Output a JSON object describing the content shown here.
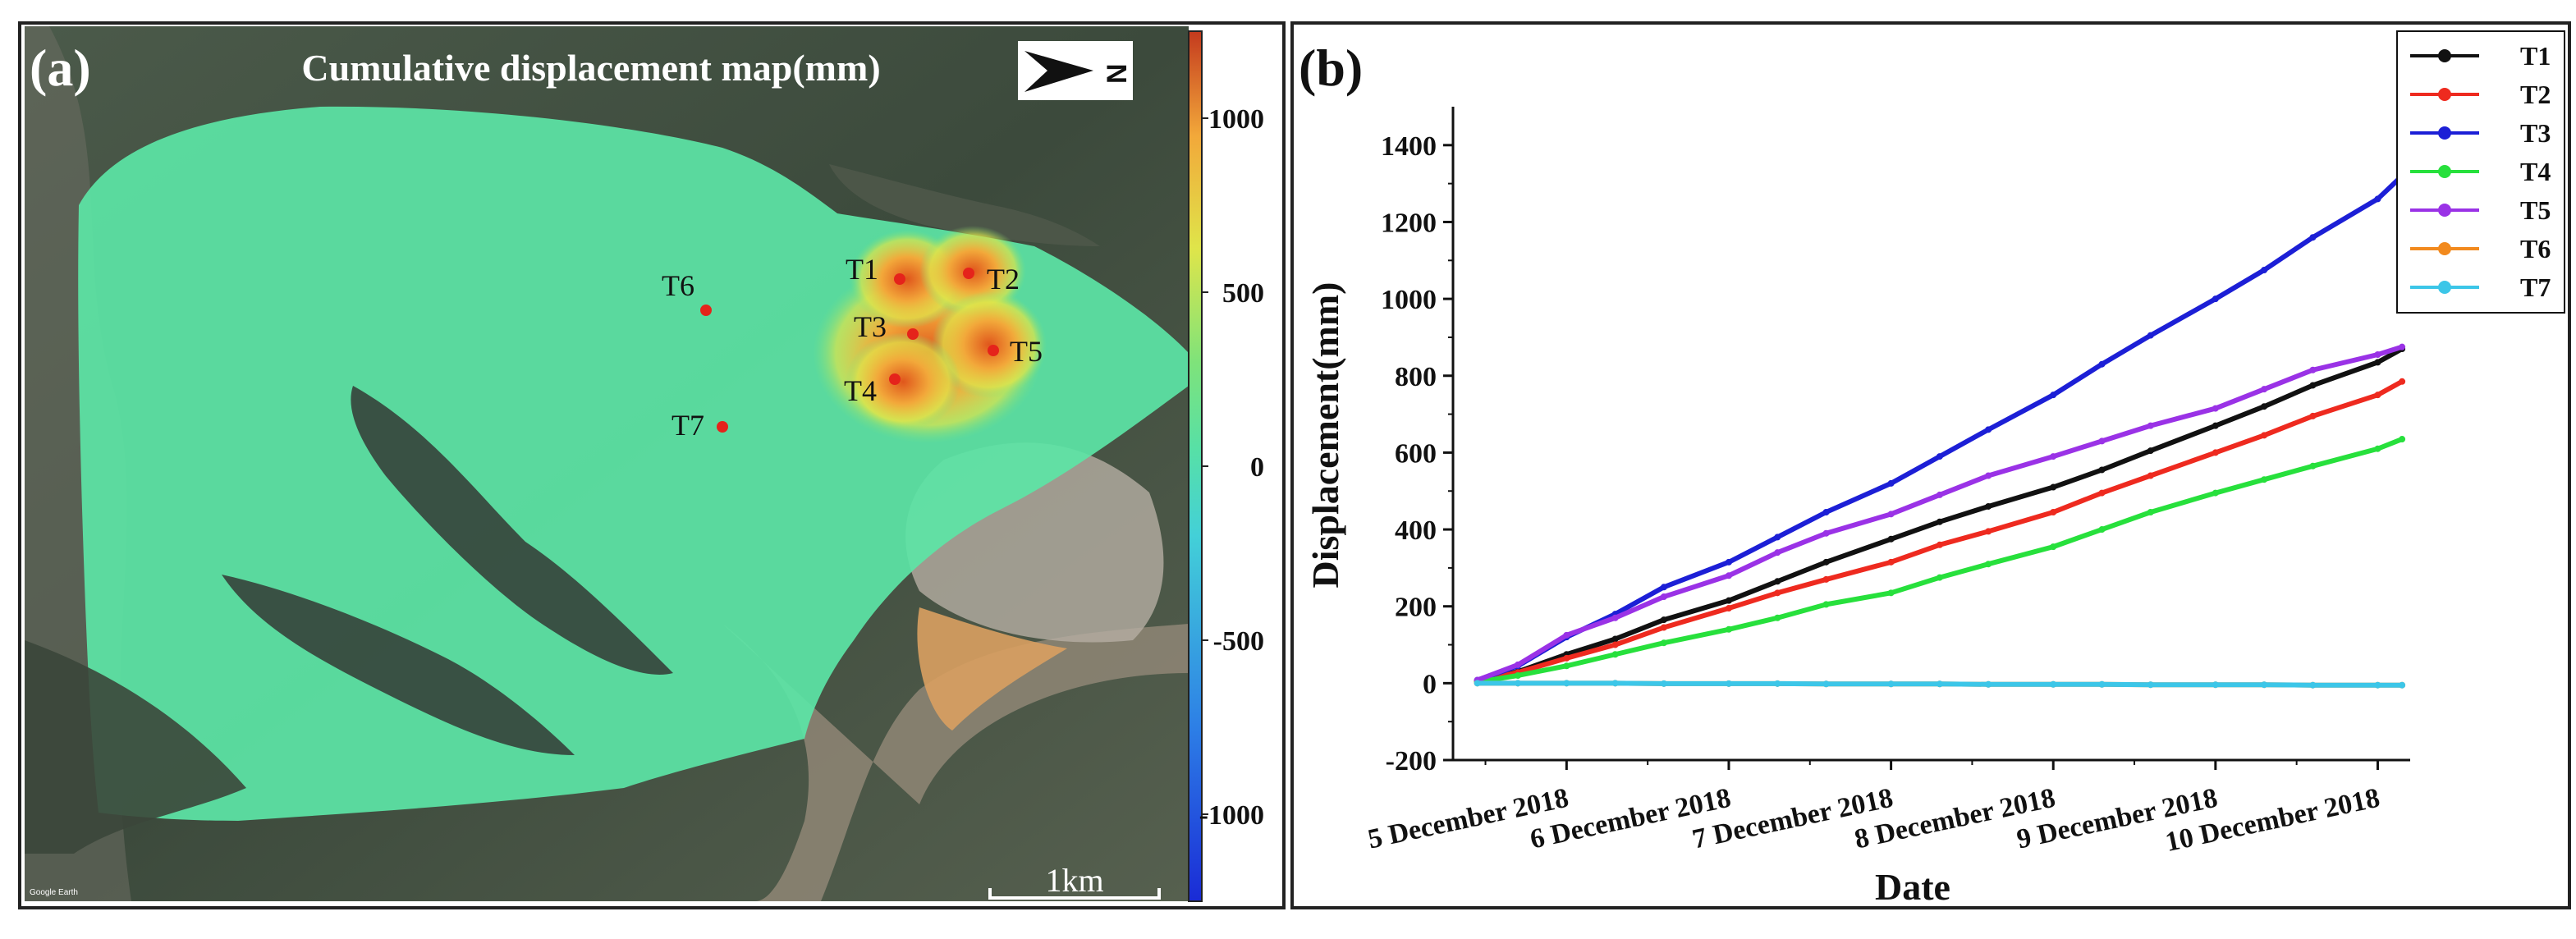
{
  "panel_a": {
    "letter": "(a)",
    "title": "Cumulative displacement map(mm)",
    "north_label": "N",
    "scale_label": "1km",
    "credit": "Google Earth",
    "colorbar": {
      "min": -1250,
      "max": 1250,
      "ticks": [
        "1000",
        "500",
        "0",
        "-500",
        "-1000"
      ],
      "tick_values": [
        1000,
        500,
        0,
        -500,
        -1000
      ],
      "colors": [
        "#1a2bd6",
        "#2d7fe6",
        "#43d0d8",
        "#57e0a6",
        "#7fe37a",
        "#dfe54a",
        "#f2a83a",
        "#c43a1e"
      ]
    },
    "points": [
      {
        "label": "T1",
        "color": "#e5231b"
      },
      {
        "label": "T2",
        "color": "#e5231b"
      },
      {
        "label": "T3",
        "color": "#e5231b"
      },
      {
        "label": "T4",
        "color": "#e5231b"
      },
      {
        "label": "T5",
        "color": "#e5231b"
      },
      {
        "label": "T6",
        "color": "#e5231b"
      },
      {
        "label": "T7",
        "color": "#e5231b"
      }
    ],
    "overlay_color": "#5ce5a6"
  },
  "chart_data": {
    "type": "line",
    "panel_letter": "(b)",
    "xlabel": "Date",
    "ylabel": "Displacement(mm)",
    "x_unit": "days since 5 December 2018 00:00",
    "xlim": [
      -0.7,
      5.2
    ],
    "ylim": [
      -200,
      1500
    ],
    "yticks": [
      -200,
      0,
      200,
      400,
      600,
      800,
      1000,
      1200,
      1400
    ],
    "xticks": [
      0,
      1,
      2,
      3,
      4,
      5
    ],
    "xtick_labels": [
      "5 December 2018",
      "6 December 2018",
      "7 December 2018",
      "8 December 2018",
      "9 December 2018",
      "10 December 2018"
    ],
    "grid": false,
    "legend": "top-right",
    "x": [
      -0.55,
      -0.3,
      0.0,
      0.3,
      0.6,
      1.0,
      1.3,
      1.6,
      2.0,
      2.3,
      2.6,
      3.0,
      3.3,
      3.6,
      4.0,
      4.3,
      4.6,
      5.0,
      5.15
    ],
    "series": [
      {
        "name": "T1",
        "color": "#111111",
        "values": [
          5,
          30,
          75,
          115,
          165,
          215,
          265,
          315,
          375,
          420,
          460,
          510,
          555,
          605,
          670,
          720,
          775,
          835,
          870
        ]
      },
      {
        "name": "T2",
        "color": "#ee2a1f",
        "values": [
          5,
          28,
          65,
          100,
          145,
          195,
          235,
          270,
          315,
          360,
          395,
          445,
          495,
          540,
          600,
          645,
          695,
          750,
          785
        ]
      },
      {
        "name": "T3",
        "color": "#1c1fd6",
        "values": [
          8,
          45,
          120,
          180,
          250,
          315,
          380,
          445,
          520,
          590,
          660,
          750,
          830,
          905,
          1000,
          1075,
          1160,
          1260,
          1320
        ]
      },
      {
        "name": "T4",
        "color": "#27e03c",
        "values": [
          3,
          20,
          45,
          75,
          105,
          140,
          170,
          205,
          235,
          275,
          310,
          355,
          400,
          445,
          495,
          530,
          565,
          610,
          635
        ]
      },
      {
        "name": "T5",
        "color": "#9a32e6",
        "values": [
          8,
          48,
          125,
          170,
          225,
          280,
          340,
          390,
          440,
          490,
          540,
          590,
          630,
          670,
          715,
          765,
          815,
          855,
          875
        ]
      },
      {
        "name": "T6",
        "color": "#f28a1e",
        "values": [
          0,
          0,
          0,
          0,
          -1,
          -1,
          -1,
          -2,
          -2,
          -2,
          -3,
          -3,
          -3,
          -4,
          -4,
          -4,
          -5,
          -5,
          -5
        ]
      },
      {
        "name": "T7",
        "color": "#3cc6e8",
        "values": [
          0,
          0,
          0,
          0,
          -1,
          -1,
          -1,
          -2,
          -2,
          -2,
          -3,
          -3,
          -3,
          -4,
          -4,
          -4,
          -5,
          -5,
          -5
        ]
      }
    ]
  }
}
